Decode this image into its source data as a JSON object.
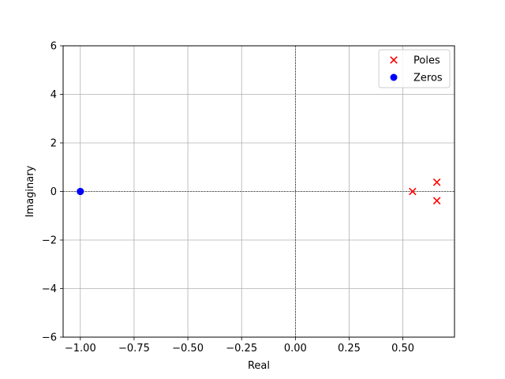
{
  "chart_data": {
    "type": "scatter",
    "title": "",
    "xlabel": "Real",
    "ylabel": "Imaginary",
    "xlim": [
      -1.08,
      0.74
    ],
    "ylim": [
      -6,
      6
    ],
    "xticks": [
      -1.0,
      -0.75,
      -0.5,
      -0.25,
      0.0,
      0.25,
      0.5
    ],
    "xtick_labels": [
      "−1.00",
      "−0.75",
      "−0.50",
      "−0.25",
      "0.00",
      "0.25",
      "0.50"
    ],
    "yticks": [
      -6,
      -4,
      -2,
      0,
      2,
      4,
      6
    ],
    "ytick_labels": [
      "−6",
      "−4",
      "−2",
      "0",
      "2",
      "4",
      "6"
    ],
    "grid": true,
    "reference_lines": {
      "x": 0,
      "y": 0
    },
    "legend": {
      "placement": "top-right"
    },
    "series": [
      {
        "name": "Poles",
        "marker": "x",
        "color": "#ff0000",
        "points": [
          [
            0.545,
            0.0
          ],
          [
            0.658,
            0.38
          ],
          [
            0.658,
            -0.38
          ]
        ]
      },
      {
        "name": "Zeros",
        "marker": "circle",
        "color": "#0000ff",
        "points": [
          [
            -1.0,
            0.0
          ],
          [
            -1.0,
            0.0
          ],
          [
            -1.0,
            0.0
          ]
        ]
      }
    ]
  },
  "colors": {
    "grid": "#b0b0b0",
    "axes": "#000000",
    "legend_border": "#cccccc"
  }
}
